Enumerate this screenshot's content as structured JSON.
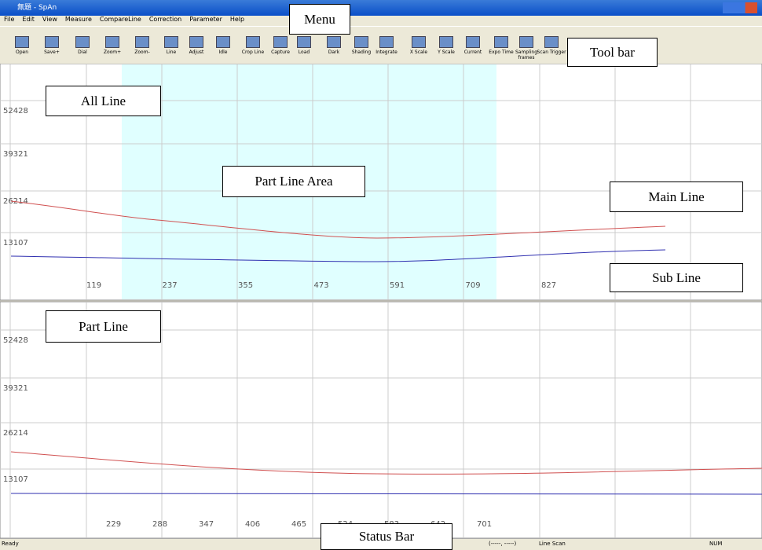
{
  "window": {
    "title": "無題 - SpAn"
  },
  "menu": [
    "File",
    "Edit",
    "View",
    "Measure",
    "CompareLine",
    "Correction",
    "Parameter",
    "Help"
  ],
  "toolbar": [
    "Open",
    "Save+",
    "Dial",
    "Zoom+",
    "Zoom-",
    "Line",
    "Adjust",
    "Idle",
    "Crop Line",
    "Capture",
    "Load",
    "Dark",
    "Shading",
    "Integrate",
    "X Scale",
    "Y Scale",
    "Current",
    "Expo Time",
    "Sampling frames",
    "Scan Trigger"
  ],
  "all_line": {
    "y_labels": [
      "52428",
      "39321",
      "26214",
      "13107"
    ],
    "x_labels": [
      "119",
      "237",
      "355",
      "473",
      "591",
      "709",
      "827"
    ]
  },
  "part_line": {
    "y_labels": [
      "52428",
      "39321",
      "26214",
      "13107"
    ],
    "x_labels": [
      "229",
      "288",
      "347",
      "406",
      "465",
      "524",
      "583",
      "642",
      "701"
    ]
  },
  "status_bar": [
    "Ready",
    "(-----, -----)",
    "Line Scan",
    "NUM"
  ],
  "annotations": {
    "menu": "Menu",
    "tool_bar": "Tool bar",
    "all_line": "All Line",
    "part_line_area": "Part Line Area",
    "main_line": "Main Line",
    "sub_line": "Sub Line",
    "part_line": "Part Line",
    "status_bar": "Status Bar"
  }
}
